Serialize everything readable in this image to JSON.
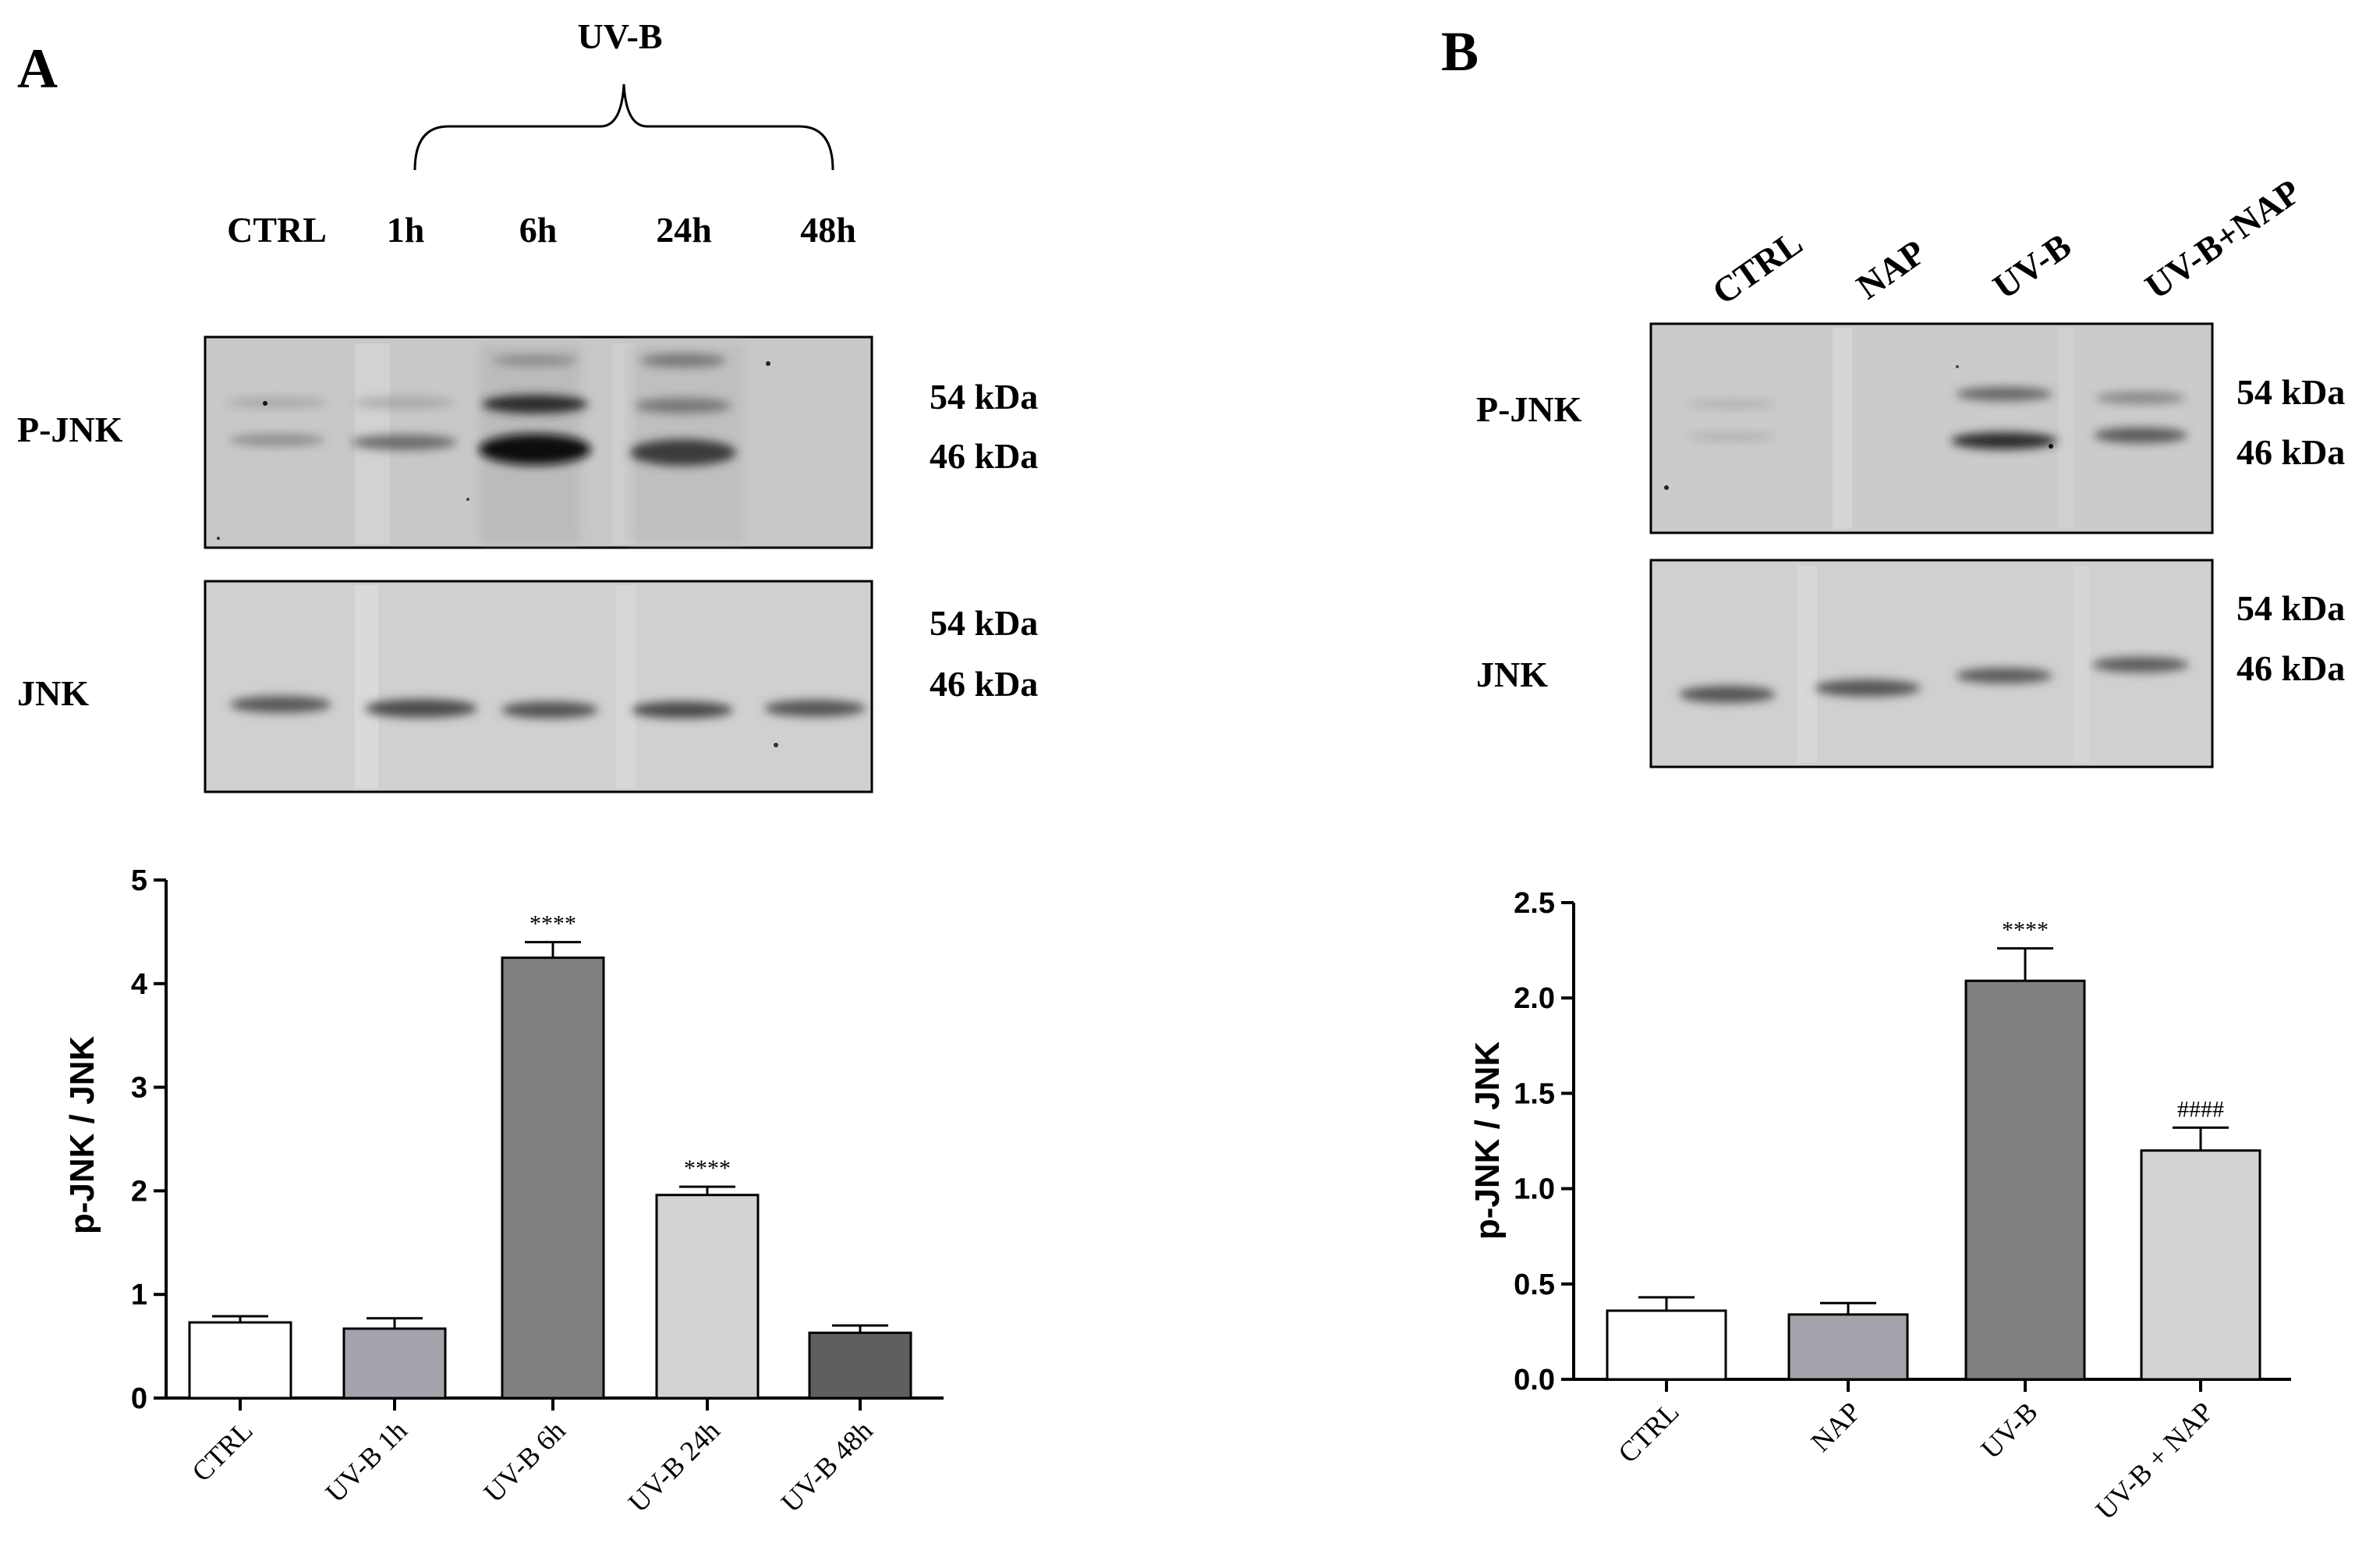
{
  "colors": {
    "white": "#ffffff",
    "light_gray": "#d3d3d3",
    "medium_gray": "#a3a3ab",
    "dark_gray": "#808080",
    "darkest_gray": "#5f5f5f",
    "blot_bg_phospho": "#c7c7c7",
    "blot_bg_total": "#cfcfcf",
    "band": "#3a3a3a"
  },
  "panel_a": {
    "letter": "A",
    "uvb_label": "UV-B",
    "lane_labels": [
      "CTRL",
      "1h",
      "6h",
      "24h",
      "48h"
    ],
    "pjnk_label": "P-JNK",
    "jnk_label": "JNK",
    "pjnk_kda": [
      "54 kDa",
      "46 kDa"
    ],
    "jnk_kda": [
      "54 kDa",
      "46 kDa"
    ]
  },
  "panel_b": {
    "letter": "B",
    "lane_labels": [
      "CTRL",
      "NAP",
      "UV-B",
      "UV-B+NAP"
    ],
    "pjnk_label": "P-JNK",
    "jnk_label": "JNK",
    "pjnk_kda": [
      "54 kDa",
      "46 kDa"
    ],
    "jnk_kda": [
      "54 kDa",
      "46 kDa"
    ]
  },
  "chart_data": [
    {
      "type": "bar",
      "panel": "A",
      "title": "",
      "xlabel": "",
      "ylabel": "p-JNK / JNK",
      "ylim": [
        0,
        5
      ],
      "yticks": [
        "0",
        "1",
        "2",
        "3",
        "4",
        "5"
      ],
      "categories": [
        "CTRL",
        "UV-B 1h",
        "UV-B 6h",
        "UV-B 24h",
        "UV-B 48h"
      ],
      "values": [
        0.73,
        0.67,
        4.25,
        1.96,
        0.63
      ],
      "errors": [
        0.06,
        0.1,
        0.15,
        0.08,
        0.07
      ],
      "annotations": [
        "",
        "",
        "****",
        "****",
        ""
      ],
      "bar_colors": [
        "white",
        "medium_gray",
        "dark_gray",
        "light_gray",
        "darkest_gray"
      ],
      "grid": false
    },
    {
      "type": "bar",
      "panel": "B",
      "title": "",
      "xlabel": "",
      "ylabel": "p-JNK / JNK",
      "ylim": [
        0,
        2.5
      ],
      "yticks": [
        "0.0",
        "0.5",
        "1.0",
        "1.5",
        "2.0",
        "2.5"
      ],
      "categories": [
        "CTRL",
        "NAP",
        "UV-B",
        "UV-B + NAP"
      ],
      "values": [
        0.36,
        0.34,
        2.09,
        1.2
      ],
      "errors": [
        0.07,
        0.06,
        0.17,
        0.12
      ],
      "annotations": [
        "",
        "",
        "****",
        "####"
      ],
      "bar_colors": [
        "white",
        "medium_gray",
        "dark_gray",
        "light_gray"
      ],
      "grid": false
    }
  ]
}
